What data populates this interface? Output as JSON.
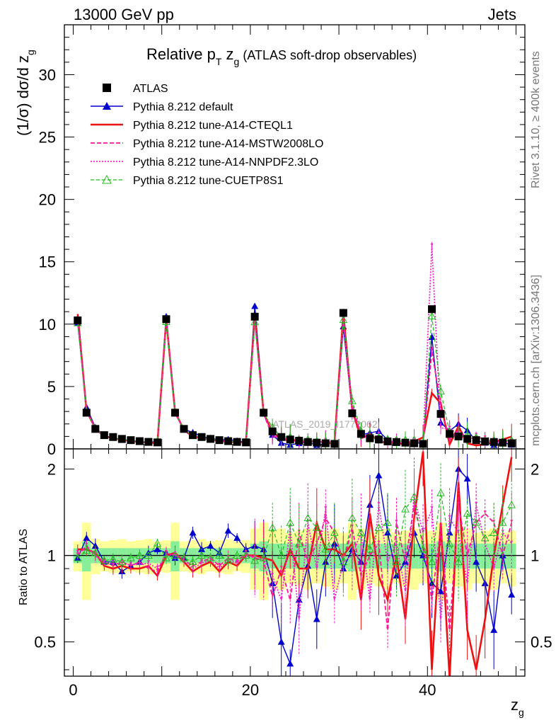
{
  "chart_data": {
    "type": "line",
    "header_left": "13000 GeV pp",
    "header_right": "Jets",
    "title_main": "Relative p",
    "title_sub_T": "T",
    "title_z": " z",
    "title_sub_g": "g",
    "title_paren": " (ATLAS soft-drop observables)",
    "ylabel_top": "(1/σ) dσ/d z",
    "ylabel_top_sub": "g",
    "ylabel_ratio": "Ratio to ATLAS",
    "xlabel": "z",
    "xlabel_sub": "g",
    "watermark": "ATLAS_2019_I1772062",
    "side_text_top": "Rivet 3.1.10, ≥ 400k events",
    "side_text_bottom": "mcplots.cern.ch [arXiv:1306.3436]",
    "x_range": [
      -1,
      51
    ],
    "y_range_top": [
      0,
      34
    ],
    "y_range_ratio": [
      0.38,
      2.35
    ],
    "x_ticks": [
      "0",
      "20",
      "40"
    ],
    "y_ticks_top": [
      "0",
      "5",
      "10",
      "15",
      "20",
      "25",
      "30"
    ],
    "y_ticks_ratio": [
      "0.5",
      "1",
      "2"
    ],
    "legend": [
      {
        "label": "ATLAS",
        "color": "#000000"
      },
      {
        "label": "Pythia 8.212 default",
        "color": "#0000cc"
      },
      {
        "label": "Pythia 8.212 tune-A14-CTEQL1",
        "color": "#ee1111"
      },
      {
        "label": "Pythia 8.212 tune-A14-MSTW2008LO",
        "color": "#ff1493"
      },
      {
        "label": "Pythia 8.212 tune-A14-NNPDF2.3LO",
        "color": "#ee22cc"
      },
      {
        "label": "Pythia 8.212 tune-CUETP8S1",
        "color": "#22bb22"
      }
    ],
    "x": [
      0.5,
      1.5,
      2.5,
      3.5,
      4.5,
      5.5,
      6.5,
      7.5,
      8.5,
      9.5,
      10.5,
      11.5,
      12.5,
      13.5,
      14.5,
      15.5,
      16.5,
      17.5,
      18.5,
      19.5,
      20.5,
      21.5,
      22.5,
      23.5,
      24.5,
      25.5,
      26.5,
      27.5,
      28.5,
      29.5,
      30.5,
      31.5,
      32.5,
      33.5,
      34.5,
      35.5,
      36.5,
      37.5,
      38.5,
      39.5,
      40.5,
      41.5,
      42.5,
      43.5,
      44.5,
      45.5,
      46.5,
      47.5,
      48.5,
      49.5
    ],
    "atlas": [
      10.3,
      2.9,
      1.6,
      1.1,
      0.95,
      0.8,
      0.7,
      0.62,
      0.56,
      0.52,
      10.4,
      2.9,
      1.6,
      1.1,
      0.95,
      0.8,
      0.7,
      0.62,
      0.56,
      0.52,
      10.6,
      2.9,
      1.4,
      0.95,
      0.75,
      0.65,
      0.55,
      0.5,
      0.45,
      0.4,
      10.9,
      2.85,
      1.2,
      0.85,
      0.75,
      0.6,
      0.55,
      0.5,
      0.45,
      0.4,
      11.2,
      2.8,
      1.2,
      1.0,
      0.8,
      0.7,
      0.6,
      0.55,
      0.5,
      0.45
    ],
    "series": [
      {
        "name": "Pythia 8.212 default",
        "ratio": [
          0.98,
          1.15,
          1.08,
          0.95,
          0.95,
          0.88,
          0.92,
          0.95,
          1.02,
          1.05,
          1.02,
          0.98,
          0.98,
          1.2,
          1.05,
          1.08,
          1.02,
          1.22,
          1.15,
          1.05,
          1.08,
          1.05,
          0.8,
          0.5,
          0.42,
          0.7,
          0.92,
          0.6,
          0.95,
          1.1,
          0.9,
          1.05,
          0.95,
          1.5,
          1.9,
          1.2,
          0.85,
          0.95,
          1.2,
          1.0,
          0.8,
          0.75,
          1.2,
          2.0,
          1.85,
          0.95,
          0.8,
          0.55,
          1.0,
          0.73
        ]
      },
      {
        "name": "Pythia 8.212 tune-A14-CTEQL1",
        "ratio": [
          1.05,
          1.05,
          1.02,
          0.92,
          0.9,
          0.92,
          0.9,
          0.9,
          0.92,
          0.85,
          1.0,
          1.02,
          0.95,
          0.88,
          0.92,
          0.95,
          0.88,
          0.95,
          0.92,
          1.0,
          1.0,
          0.98,
          0.96,
          0.85,
          1.05,
          0.9,
          0.9,
          1.3,
          1.05,
          1.05,
          1.0,
          1.1,
          0.7,
          1.4,
          0.85,
          0.7,
          1.0,
          0.6,
          1.35,
          2.3,
          0.4,
          1.3,
          0.3,
          1.8,
          0.55,
          0.4,
          0.6,
          1.0,
          1.5,
          2.2
        ]
      },
      {
        "name": "Pythia 8.212 tune-A14-MSTW2008LO",
        "ratio": [
          1.0,
          1.08,
          1.0,
          0.95,
          0.92,
          0.95,
          0.92,
          0.95,
          0.9,
          0.88,
          1.02,
          1.0,
          0.96,
          0.92,
          0.95,
          0.98,
          0.92,
          0.98,
          0.95,
          1.02,
          0.98,
          0.96,
          0.72,
          0.9,
          0.7,
          1.2,
          0.95,
          1.1,
          1.35,
          1.2,
          0.95,
          1.25,
          0.85,
          1.0,
          1.1,
          0.55,
          1.3,
          0.95,
          1.5,
          1.1,
          0.7,
          1.25,
          0.55,
          1.5,
          1.0,
          1.3,
          1.4,
          1.3,
          1.0,
          1.3
        ]
      },
      {
        "name": "Pythia 8.212 tune-A14-NNPDF2.3LO",
        "ratio": [
          1.02,
          1.06,
          1.0,
          0.94,
          0.94,
          0.93,
          0.93,
          0.93,
          0.94,
          0.9,
          1.0,
          1.01,
          0.97,
          0.9,
          0.94,
          0.96,
          0.9,
          0.96,
          0.94,
          1.0,
          0.98,
          0.97,
          0.85,
          0.7,
          1.25,
          0.6,
          1.3,
          0.9,
          1.45,
          0.7,
          0.95,
          1.0,
          1.2,
          0.7,
          1.5,
          0.95,
          1.1,
          0.75,
          1.6,
          1.2,
          1.45,
          0.6,
          1.35,
          1.2,
          0.8,
          1.5,
          1.1,
          0.9,
          1.2,
          1.1
        ]
      },
      {
        "name": "Pythia 8.212 tune-CUETP8S1",
        "ratio": [
          0.98,
          1.04,
          1.02,
          0.96,
          0.97,
          0.95,
          0.98,
          1.0,
          1.0,
          1.1,
          0.98,
          1.0,
          0.98,
          0.95,
          1.0,
          0.98,
          1.0,
          0.96,
          1.0,
          1.0,
          0.96,
          0.98,
          1.25,
          1.0,
          1.3,
          1.1,
          1.35,
          1.25,
          1.05,
          1.2,
          0.95,
          1.35,
          1.2,
          1.05,
          1.25,
          1.3,
          0.95,
          1.45,
          1.6,
          1.05,
          0.95,
          1.65,
          1.1,
          0.95,
          1.4,
          1.3,
          1.15,
          1.2,
          1.3,
          1.5
        ]
      }
    ]
  }
}
